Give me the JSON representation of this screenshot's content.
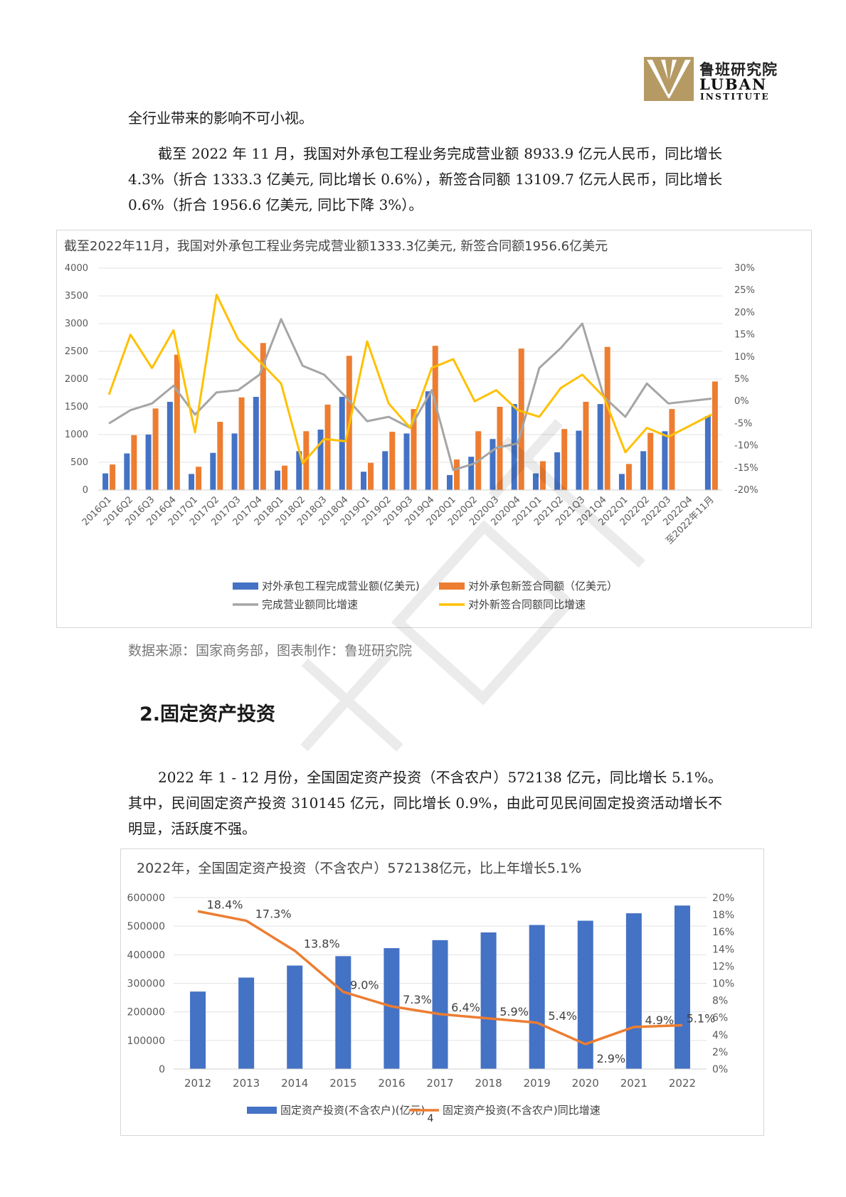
{
  "logo": {
    "cn": "鲁班研究院",
    "en": "LUBAN",
    "en2": "INSTITUTE"
  },
  "para1": "全行业带来的影响不可小视。",
  "para2": "截至 2022 年 11 月，我国对外承包工程业务完成营业额 8933.9 亿元人民币，同比增长 4.3%（折合 1333.3 亿美元, 同比增长 0.6%），新签合同额 13109.7 亿元人民币，同比增长 0.6%（折合 1956.6 亿美元, 同比下降 3%）。",
  "source": "数据来源：国家商务部，图表制作：鲁班研究院",
  "heading": "2.固定资产投资",
  "para3": "2022 年 1 - 12 月份，全国固定资产投资（不含农户）572138 亿元，同比增长 5.1%。其中，民间固定资产投资 310145 亿元，同比增长 0.9%，由此可见民间固定投资活动增长不明显，活跃度不强。",
  "page_number": "4",
  "colors": {
    "blue": "#4472C4",
    "orange": "#ED7D31",
    "gray": "#A5A5A5",
    "yellow": "#FFC000"
  },
  "chart_data": [
    {
      "type": "bar",
      "title": "截至2022年11月，我国对外承包工程业务完成营业额1333.3亿美元, 新签合同额1956.6亿美元",
      "categories": [
        "2016Q1",
        "2016Q2",
        "2016Q3",
        "2016Q4",
        "2017Q1",
        "2017Q2",
        "2017Q3",
        "2017Q4",
        "2018Q1",
        "2018Q2",
        "2018Q3",
        "2018Q4",
        "2019Q1",
        "2019Q2",
        "2019Q3",
        "2019Q4",
        "2020Q1",
        "2020Q2",
        "2020Q3",
        "2020Q4",
        "2021Q1",
        "2021Q2",
        "2021Q3",
        "2021Q4",
        "2022Q1",
        "2022Q2",
        "2022Q3",
        "2022Q4",
        "至2022年11月"
      ],
      "ylim": [
        0,
        4000
      ],
      "yticks": [
        "0",
        "500",
        "1000",
        "1500",
        "2000",
        "2500",
        "3000",
        "3500",
        "4000"
      ],
      "y2lim": [
        -20,
        30
      ],
      "y2ticks": [
        "-20%",
        "-15%",
        "-10%",
        "-5%",
        "0%",
        "5%",
        "10%",
        "15%",
        "20%",
        "25%",
        "30%"
      ],
      "legend_position": "bottom",
      "series": [
        {
          "name": "对外承包工程完成营业额(亿美元)",
          "kind": "bar",
          "axis": "left",
          "color": "#4472C4",
          "values": [
            300,
            660,
            1000,
            1590,
            290,
            670,
            1020,
            1680,
            350,
            700,
            1090,
            1680,
            330,
            700,
            1020,
            1780,
            270,
            600,
            920,
            1550,
            300,
            680,
            1070,
            1550,
            290,
            700,
            1060,
            null,
            1333.3
          ]
        },
        {
          "name": "对外承包新签合同额（亿美元）",
          "kind": "bar",
          "axis": "left",
          "color": "#ED7D31",
          "values": [
            460,
            990,
            1470,
            2440,
            420,
            1230,
            1670,
            2650,
            440,
            1060,
            1540,
            2420,
            490,
            1050,
            1460,
            2600,
            550,
            1060,
            1500,
            2550,
            520,
            1100,
            1590,
            2580,
            470,
            1030,
            1460,
            null,
            1956.6
          ]
        },
        {
          "name": "完成营业额同比增速",
          "kind": "line",
          "axis": "right",
          "color": "#A5A5A5",
          "values": [
            -5,
            -2,
            -0.5,
            3.5,
            -3,
            2,
            2.5,
            6,
            18.5,
            8,
            6,
            1,
            -4.5,
            -3.5,
            -6,
            2.5,
            -15.5,
            -14,
            -10.5,
            -9.5,
            7.5,
            12,
            17.5,
            1,
            -3.5,
            4,
            -0.5,
            null,
            0.6
          ]
        },
        {
          "name": "对外新签合同额同比增速",
          "kind": "line",
          "axis": "right",
          "color": "#FFC000",
          "values": [
            1.5,
            15,
            7.5,
            16,
            -7,
            24,
            14,
            9,
            4,
            -14,
            -8.5,
            -9,
            13.5,
            -0.5,
            -6,
            7.5,
            9.5,
            0,
            2.5,
            -2,
            -3.5,
            3,
            6,
            1,
            -11.5,
            -6,
            -8,
            null,
            -3
          ]
        }
      ]
    },
    {
      "type": "bar",
      "title": "2022年，全国固定资产投资（不含农户）572138亿元，比上年增长5.1%",
      "categories": [
        "2012",
        "2013",
        "2014",
        "2015",
        "2016",
        "2017",
        "2018",
        "2019",
        "2020",
        "2021",
        "2022"
      ],
      "ylim": [
        0,
        600000
      ],
      "yticks": [
        "0",
        "100000",
        "200000",
        "300000",
        "400000",
        "500000",
        "600000"
      ],
      "y2lim": [
        0,
        20
      ],
      "y2ticks": [
        "0%",
        "2%",
        "4%",
        "6%",
        "8%",
        "10%",
        "12%",
        "14%",
        "16%",
        "18%",
        "20%"
      ],
      "legend_position": "bottom",
      "series": [
        {
          "name": "固定资产投资(不含农户)(亿元)",
          "kind": "bar",
          "axis": "left",
          "color": "#4472C4",
          "values": [
            271000,
            320000,
            362000,
            395000,
            423000,
            451000,
            478000,
            504000,
            519000,
            545000,
            572138
          ]
        },
        {
          "name": "固定资产投资(不含农户)同比增速",
          "kind": "line",
          "axis": "right",
          "color": "#ED7D31",
          "values": [
            18.4,
            17.3,
            13.8,
            9.0,
            7.3,
            6.4,
            5.9,
            5.4,
            2.9,
            4.9,
            5.1
          ],
          "labels": [
            "18.4%",
            "17.3%",
            "13.8%",
            "9.0%",
            "7.3%",
            "6.4%",
            "5.9%",
            "5.4%",
            "2.9%",
            "4.9%",
            "5.1%"
          ]
        }
      ]
    }
  ]
}
